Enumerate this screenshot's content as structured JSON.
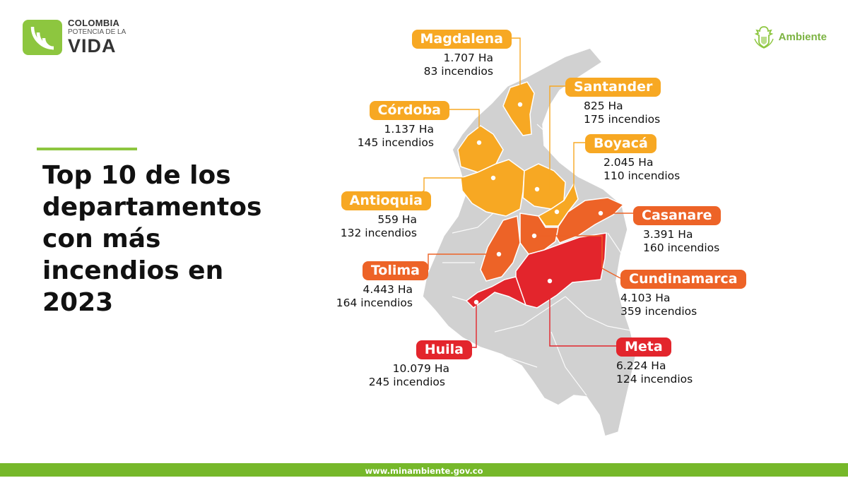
{
  "logo": {
    "line1": "COLOMBIA",
    "line2": "POTENCIA DE LA",
    "line3": "VIDA",
    "mark_color": "#8dc63f"
  },
  "agency": {
    "label": "Ambiente",
    "icon": "coat-of-arms-icon",
    "color": "#7cb342"
  },
  "title": "Top 10 de los departamentos con más incendios en 2023",
  "footer": {
    "url": "www.minambiente.gov.co"
  },
  "colors": {
    "yellow": "#f7a823",
    "orange": "#ed6327",
    "red": "#e3252c",
    "gray": "#d1d1d1"
  },
  "departments": {
    "magdalena": {
      "name": "Magdalena",
      "hectares": "1.707 Ha",
      "fires": "83 incendios",
      "color": "#f7a823"
    },
    "santander": {
      "name": "Santander",
      "hectares": "825 Ha",
      "fires": "175 incendios",
      "color": "#f7a823"
    },
    "cordoba": {
      "name": "Córdoba",
      "hectares": "1.137 Ha",
      "fires": "145 incendios",
      "color": "#f7a823"
    },
    "boyaca": {
      "name": "Boyacá",
      "hectares": "2.045 Ha",
      "fires": "110 incendios",
      "color": "#f7a823"
    },
    "antioquia": {
      "name": "Antioquia",
      "hectares": "559 Ha",
      "fires": "132 incendios",
      "color": "#f7a823"
    },
    "casanare": {
      "name": "Casanare",
      "hectares": "3.391 Ha",
      "fires": "160 incendios",
      "color": "#ed6327"
    },
    "tolima": {
      "name": "Tolima",
      "hectares": "4.443 Ha",
      "fires": "164 incendios",
      "color": "#ed6327"
    },
    "cundinamarca": {
      "name": "Cundinamarca",
      "hectares": "4.103 Ha",
      "fires": "359 incendios",
      "color": "#ed6327"
    },
    "huila": {
      "name": "Huila",
      "hectares": "10.079 Ha",
      "fires": "245 incendios",
      "color": "#e3252c"
    },
    "meta": {
      "name": "Meta",
      "hectares": "6.224 Ha",
      "fires": "124 incendios",
      "color": "#e3252c"
    }
  }
}
